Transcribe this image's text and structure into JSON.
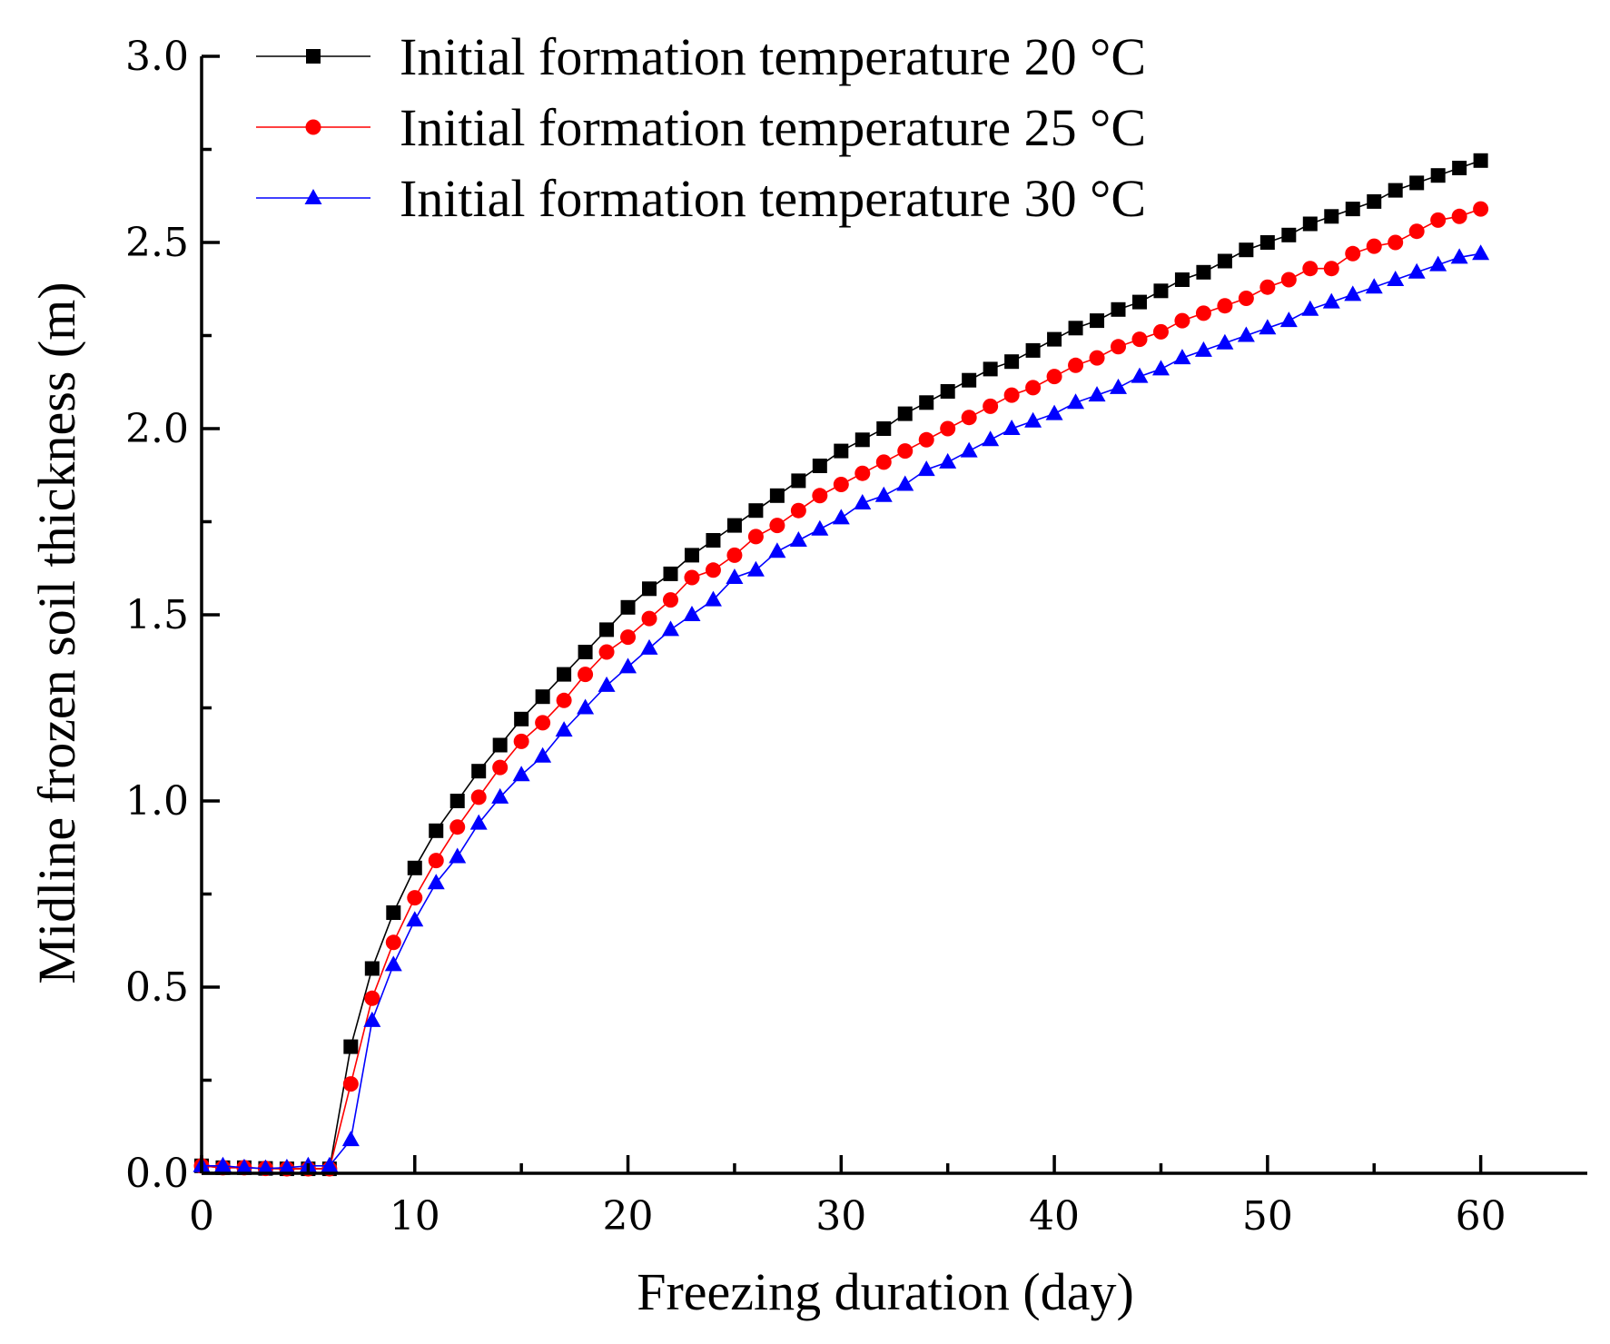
{
  "chart_data": {
    "type": "line",
    "title": "",
    "xlabel": "Freezing duration (day)",
    "ylabel": "Midline frozen soil thickness (m)",
    "xlim": [
      0,
      65
    ],
    "ylim": [
      0,
      3.0
    ],
    "xticks": [
      0,
      10,
      20,
      30,
      40,
      50,
      60
    ],
    "yticks": [
      0.0,
      0.5,
      1.0,
      1.5,
      2.0,
      2.5,
      3.0
    ],
    "xtick_labels": [
      "0",
      "10",
      "20",
      "30",
      "40",
      "50",
      "60"
    ],
    "ytick_labels": [
      "0.0",
      "0.5",
      "1.0",
      "1.5",
      "2.0",
      "2.5",
      "3.0"
    ],
    "grid": false,
    "legend_position": "top-left",
    "x": [
      0,
      1,
      2,
      3,
      4,
      5,
      6,
      7,
      8,
      9,
      10,
      11,
      12,
      13,
      14,
      15,
      16,
      17,
      18,
      19,
      20,
      21,
      22,
      23,
      24,
      25,
      26,
      27,
      28,
      29,
      30,
      31,
      32,
      33,
      34,
      35,
      36,
      37,
      38,
      39,
      40,
      41,
      42,
      43,
      44,
      45,
      46,
      47,
      48,
      49,
      50,
      51,
      52,
      53,
      54,
      55,
      56,
      57,
      58,
      59,
      60
    ],
    "series": [
      {
        "name": "Initial formation temperature 20 °C",
        "color": "#000000",
        "marker": "square",
        "values": [
          0.02,
          0.015,
          0.015,
          0.013,
          0.012,
          0.012,
          0.012,
          0.34,
          0.55,
          0.7,
          0.82,
          0.92,
          1.0,
          1.08,
          1.15,
          1.22,
          1.28,
          1.34,
          1.4,
          1.46,
          1.52,
          1.57,
          1.61,
          1.66,
          1.7,
          1.74,
          1.78,
          1.82,
          1.86,
          1.9,
          1.94,
          1.97,
          2.0,
          2.04,
          2.07,
          2.1,
          2.13,
          2.16,
          2.18,
          2.21,
          2.24,
          2.27,
          2.29,
          2.32,
          2.34,
          2.37,
          2.4,
          2.42,
          2.45,
          2.48,
          2.5,
          2.52,
          2.55,
          2.57,
          2.59,
          2.61,
          2.64,
          2.66,
          2.68,
          2.7,
          2.72
        ]
      },
      {
        "name": "Initial formation temperature 25 °C",
        "color": "#ff0000",
        "marker": "circle",
        "values": [
          0.02,
          0.015,
          0.015,
          0.013,
          0.012,
          0.012,
          0.012,
          0.24,
          0.47,
          0.62,
          0.74,
          0.84,
          0.93,
          1.01,
          1.09,
          1.16,
          1.21,
          1.27,
          1.34,
          1.4,
          1.44,
          1.49,
          1.54,
          1.6,
          1.62,
          1.66,
          1.71,
          1.74,
          1.78,
          1.82,
          1.85,
          1.88,
          1.91,
          1.94,
          1.97,
          2.0,
          2.03,
          2.06,
          2.09,
          2.11,
          2.14,
          2.17,
          2.19,
          2.22,
          2.24,
          2.26,
          2.29,
          2.31,
          2.33,
          2.35,
          2.38,
          2.4,
          2.43,
          2.43,
          2.47,
          2.49,
          2.5,
          2.53,
          2.56,
          2.57,
          2.59
        ]
      },
      {
        "name": "Initial formation temperature 30 °C",
        "color": "#0000ff",
        "marker": "triangle",
        "values": [
          0.02,
          0.02,
          0.015,
          0.013,
          0.015,
          0.02,
          0.02,
          0.09,
          0.41,
          0.56,
          0.68,
          0.78,
          0.85,
          0.94,
          1.01,
          1.07,
          1.12,
          1.19,
          1.25,
          1.31,
          1.36,
          1.41,
          1.46,
          1.5,
          1.54,
          1.6,
          1.62,
          1.67,
          1.7,
          1.73,
          1.76,
          1.8,
          1.82,
          1.85,
          1.89,
          1.91,
          1.94,
          1.97,
          2.0,
          2.02,
          2.04,
          2.07,
          2.09,
          2.11,
          2.14,
          2.16,
          2.19,
          2.21,
          2.23,
          2.25,
          2.27,
          2.29,
          2.32,
          2.34,
          2.36,
          2.38,
          2.4,
          2.42,
          2.44,
          2.46,
          2.47
        ]
      }
    ]
  }
}
